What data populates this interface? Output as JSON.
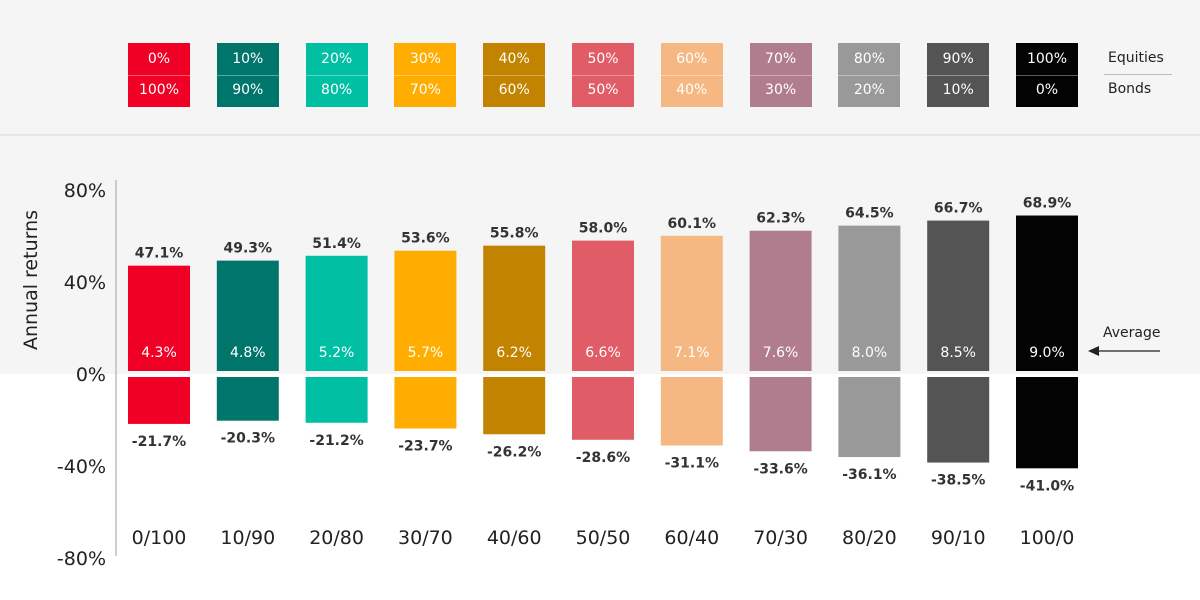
{
  "legend": {
    "equities_label": "Equities",
    "bonds_label": "Bonds",
    "items": [
      {
        "equities": "0%",
        "bonds": "100%",
        "color": "#ef0024"
      },
      {
        "equities": "10%",
        "bonds": "90%",
        "color": "#00756c"
      },
      {
        "equities": "20%",
        "bonds": "80%",
        "color": "#00bfa3"
      },
      {
        "equities": "30%",
        "bonds": "70%",
        "color": "#ffad00"
      },
      {
        "equities": "40%",
        "bonds": "60%",
        "color": "#c28300"
      },
      {
        "equities": "50%",
        "bonds": "50%",
        "color": "#e05c66"
      },
      {
        "equities": "60%",
        "bonds": "40%",
        "color": "#f5b883"
      },
      {
        "equities": "70%",
        "bonds": "30%",
        "color": "#b07d8f"
      },
      {
        "equities": "80%",
        "bonds": "20%",
        "color": "#999999"
      },
      {
        "equities": "90%",
        "bonds": "10%",
        "color": "#545454"
      },
      {
        "equities": "100%",
        "bonds": "0%",
        "color": "#030303"
      }
    ]
  },
  "chart_data": {
    "type": "bar",
    "ylabel": "Annual returns",
    "yticks": [
      "80%",
      "40%",
      "0%",
      "-40%",
      "-80%"
    ],
    "tick_values": [
      80,
      40,
      0,
      -40,
      -80
    ],
    "ylim": [
      -80,
      80
    ],
    "categories": [
      "0/100",
      "10/90",
      "20/80",
      "30/70",
      "40/60",
      "50/50",
      "60/40",
      "70/30",
      "80/20",
      "90/10",
      "100/0"
    ],
    "series": [
      {
        "values": [
          47.1,
          49.3,
          51.4,
          53.6,
          55.8,
          58.0,
          60.1,
          62.3,
          64.5,
          66.7,
          68.9
        ],
        "labels": [
          "47.1%",
          "49.3%",
          "51.4%",
          "53.6%",
          "55.8%",
          "58.0%",
          "60.1%",
          "62.3%",
          "64.5%",
          "66.7%",
          "68.9%"
        ]
      },
      {
        "values": [
          -21.7,
          -20.3,
          -21.2,
          -23.7,
          -26.2,
          -28.6,
          -31.1,
          -33.6,
          -36.1,
          -38.5,
          -41.0
        ],
        "labels": [
          "-21.7%",
          "-20.3%",
          "-21.2%",
          "-23.7%",
          "-26.2%",
          "-28.6%",
          "-31.1%",
          "-33.6%",
          "-36.1%",
          "-38.5%",
          "-41.0%"
        ]
      },
      {
        "values": [
          4.3,
          4.8,
          5.2,
          5.7,
          6.2,
          6.6,
          7.1,
          7.6,
          8.0,
          8.5,
          9.0
        ],
        "labels": [
          "4.3%",
          "4.8%",
          "5.2%",
          "5.7%",
          "6.2%",
          "6.6%",
          "7.1%",
          "7.6%",
          "8.0%",
          "8.5%",
          "9.0%"
        ]
      }
    ],
    "annotation": "Average",
    "header_bg": "#f5f5f5",
    "grid": false
  }
}
